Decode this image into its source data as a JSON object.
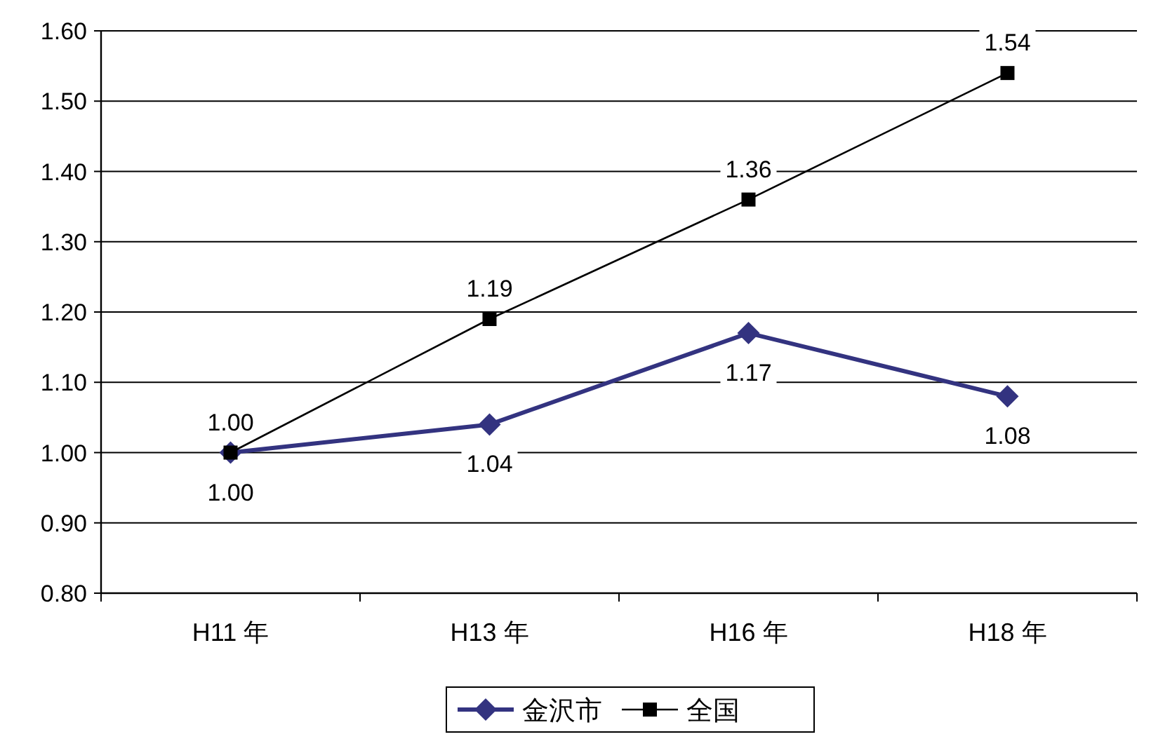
{
  "chart_data": {
    "type": "line",
    "categories": [
      "H11 年",
      "H13 年",
      "H16 年",
      "H18 年"
    ],
    "series": [
      {
        "name": "金沢市",
        "color": "#333380",
        "marker": "diamond",
        "values": [
          1.0,
          1.04,
          1.17,
          1.08
        ],
        "value_labels": [
          "1.00",
          "1.04",
          "1.17",
          "1.08"
        ]
      },
      {
        "name": "全国",
        "color": "#000000",
        "marker": "square",
        "values": [
          1.0,
          1.19,
          1.36,
          1.54
        ],
        "value_labels": [
          "1.00",
          "1.19",
          "1.36",
          "1.54"
        ]
      }
    ],
    "ylim": [
      0.8,
      1.6
    ],
    "yticks": [
      {
        "value": 0.8,
        "label": "0.80"
      },
      {
        "value": 0.9,
        "label": "0.90"
      },
      {
        "value": 1.0,
        "label": "1.00"
      },
      {
        "value": 1.1,
        "label": "1.10"
      },
      {
        "value": 1.2,
        "label": "1.20"
      },
      {
        "value": 1.3,
        "label": "1.30"
      },
      {
        "value": 1.4,
        "label": "1.40"
      },
      {
        "value": 1.5,
        "label": "1.50"
      },
      {
        "value": 1.6,
        "label": "1.60"
      }
    ],
    "grid": "y",
    "legend": "bottom",
    "line_style": "solid"
  }
}
